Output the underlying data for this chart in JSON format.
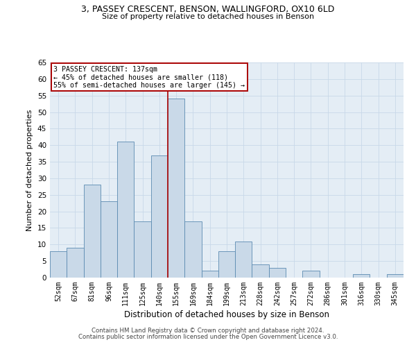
{
  "title_line1": "3, PASSEY CRESCENT, BENSON, WALLINGFORD, OX10 6LD",
  "title_line2": "Size of property relative to detached houses in Benson",
  "xlabel": "Distribution of detached houses by size in Benson",
  "ylabel": "Number of detached properties",
  "categories": [
    "52sqm",
    "67sqm",
    "81sqm",
    "96sqm",
    "111sqm",
    "125sqm",
    "140sqm",
    "155sqm",
    "169sqm",
    "184sqm",
    "199sqm",
    "213sqm",
    "228sqm",
    "242sqm",
    "257sqm",
    "272sqm",
    "286sqm",
    "301sqm",
    "316sqm",
    "330sqm",
    "345sqm"
  ],
  "bar_heights": [
    8,
    9,
    28,
    23,
    41,
    17,
    37,
    54,
    17,
    2,
    8,
    11,
    4,
    3,
    0,
    2,
    0,
    0,
    1,
    0,
    1
  ],
  "bar_color": "#c9d9e8",
  "bar_edge_color": "#5a8ab0",
  "vline_x_index": 6,
  "vline_color": "#aa0000",
  "annotation_text": "3 PASSEY CRESCENT: 137sqm\n← 45% of detached houses are smaller (118)\n55% of semi-detached houses are larger (145) →",
  "annotation_box_color": "white",
  "annotation_box_edge_color": "#aa0000",
  "ylim": [
    0,
    65
  ],
  "yticks": [
    0,
    5,
    10,
    15,
    20,
    25,
    30,
    35,
    40,
    45,
    50,
    55,
    60,
    65
  ],
  "grid_color": "#c8d8e8",
  "bg_color": "#e4edf5",
  "footnote1": "Contains HM Land Registry data © Crown copyright and database right 2024.",
  "footnote2": "Contains public sector information licensed under the Open Government Licence v3.0."
}
